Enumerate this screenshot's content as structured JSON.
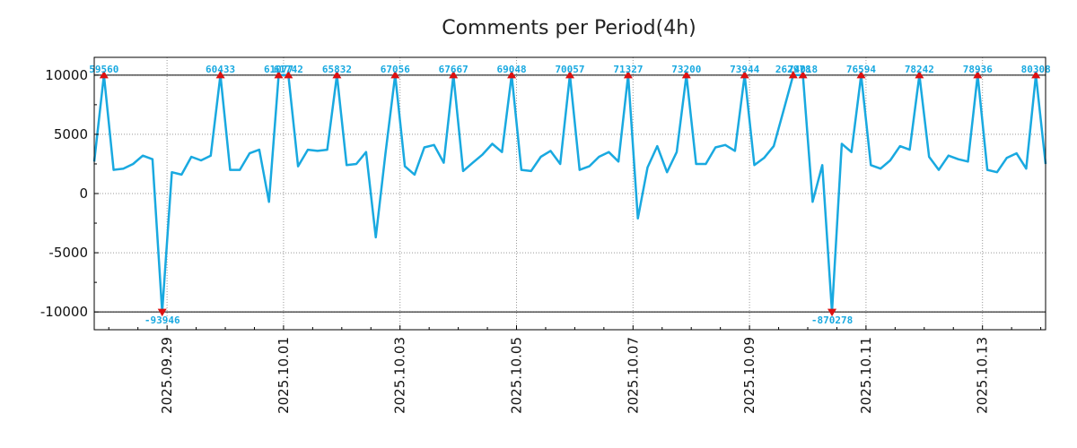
{
  "chart_data": {
    "type": "line",
    "title": "Comments per Period(4h)",
    "xlabel": "",
    "ylabel": "",
    "ylim": [
      -11500,
      11500
    ],
    "yticks": [
      -10000,
      -5000,
      0,
      5000,
      10000
    ],
    "ytick_labels": [
      "-10000",
      "-5000",
      "0",
      "5000",
      "10000"
    ],
    "x_unit": "period index (4h)",
    "xlim": [
      0,
      98
    ],
    "x_major_ticks": [
      {
        "x": 7.5,
        "label": "2025.09.29"
      },
      {
        "x": 19.5,
        "label": "2025.10.01"
      },
      {
        "x": 31.5,
        "label": "2025.10.03"
      },
      {
        "x": 43.5,
        "label": "2025.10.05"
      },
      {
        "x": 55.5,
        "label": "2025.10.07"
      },
      {
        "x": 67.5,
        "label": "2025.10.09"
      },
      {
        "x": 79.5,
        "label": "2025.10.11"
      },
      {
        "x": 91.5,
        "label": "2025.10.13"
      }
    ],
    "clip_lines": [
      10000,
      -10000
    ],
    "grid": true,
    "line_color": "#19a9e0",
    "marker_color": "#dd1111",
    "series": [
      {
        "name": "Comments",
        "values": [
          2700,
          10000,
          2000,
          2100,
          2500,
          3200,
          2900,
          -10000,
          1800,
          1600,
          3100,
          2800,
          3200,
          10000,
          2000,
          2000,
          3400,
          3700,
          -700,
          10000,
          10000,
          2300,
          3700,
          3600,
          3700,
          10000,
          2400,
          2500,
          3500,
          -3700,
          3400,
          10000,
          2300,
          1600,
          3900,
          4100,
          2600,
          10000,
          1900,
          2600,
          3300,
          4200,
          3500,
          10000,
          2000,
          1900,
          3100,
          3600,
          2500,
          10000,
          2000,
          2300,
          3100,
          3500,
          2700,
          10000,
          -2100,
          2200,
          4000,
          1800,
          3500,
          10000,
          2500,
          2500,
          3900,
          4100,
          3600,
          10000,
          2400,
          3000,
          4000,
          7000,
          10000,
          10000,
          -700,
          2400,
          -10000,
          4200,
          3500,
          10000,
          2400,
          2100,
          2800,
          4000,
          3700,
          10000,
          3100,
          2000,
          3200,
          2900,
          2700,
          10000,
          2000,
          1800,
          3000,
          3400,
          2100,
          10000,
          2500
        ]
      }
    ],
    "annotations": [
      {
        "x": 1,
        "y": 10000,
        "label": "59560"
      },
      {
        "x": 7,
        "y": -10000,
        "label": "-93946"
      },
      {
        "x": 13,
        "y": 10000,
        "label": "60433"
      },
      {
        "x": 19,
        "y": 10000,
        "label": "61077"
      },
      {
        "x": 20,
        "y": 10000,
        "label": "61742"
      },
      {
        "x": 25,
        "y": 10000,
        "label": "65832"
      },
      {
        "x": 31,
        "y": 10000,
        "label": "67056"
      },
      {
        "x": 37,
        "y": 10000,
        "label": "67667"
      },
      {
        "x": 43,
        "y": 10000,
        "label": "69048"
      },
      {
        "x": 49,
        "y": 10000,
        "label": "70057"
      },
      {
        "x": 55,
        "y": 10000,
        "label": "71327"
      },
      {
        "x": 61,
        "y": 10000,
        "label": "73200"
      },
      {
        "x": 67,
        "y": 10000,
        "label": "73944"
      },
      {
        "x": 72,
        "y": 10000,
        "label": "262978"
      },
      {
        "x": 73,
        "y": 10000,
        "label": "74018"
      },
      {
        "x": 76,
        "y": -10000,
        "label": "-870278"
      },
      {
        "x": 79,
        "y": 10000,
        "label": "76594"
      },
      {
        "x": 85,
        "y": 10000,
        "label": "78242"
      },
      {
        "x": 91,
        "y": 10000,
        "label": "78936"
      },
      {
        "x": 97,
        "y": 10000,
        "label": "80308"
      }
    ]
  }
}
